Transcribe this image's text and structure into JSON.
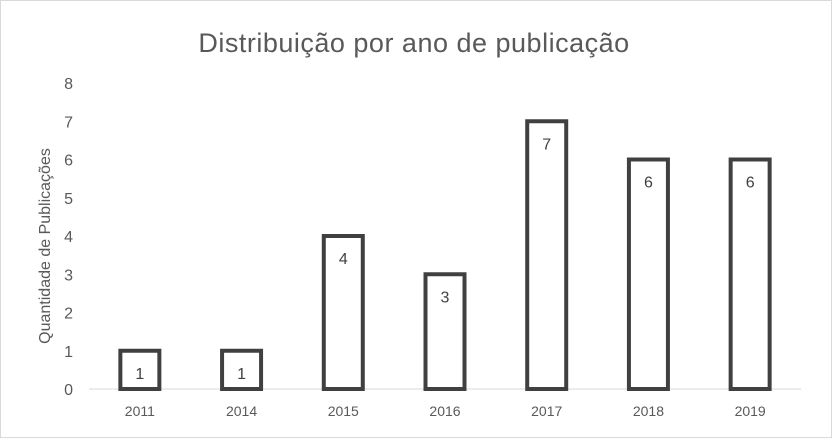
{
  "chart_data": {
    "type": "bar",
    "title": "Distribuição por ano de publicação",
    "xlabel": "",
    "ylabel": "Quantidade de Publicações",
    "categories": [
      "2011",
      "2014",
      "2015",
      "2016",
      "2017",
      "2018",
      "2019"
    ],
    "values": [
      1,
      1,
      4,
      3,
      7,
      6,
      6
    ],
    "ylim": [
      0,
      8
    ],
    "yticks": [
      0,
      1,
      2,
      3,
      4,
      5,
      6,
      7,
      8
    ],
    "grid": false,
    "legend": "none",
    "data_labels": true,
    "colors": {
      "bar_fill": "#ffffff",
      "bar_stroke": "#404040",
      "text": "#595959"
    }
  }
}
